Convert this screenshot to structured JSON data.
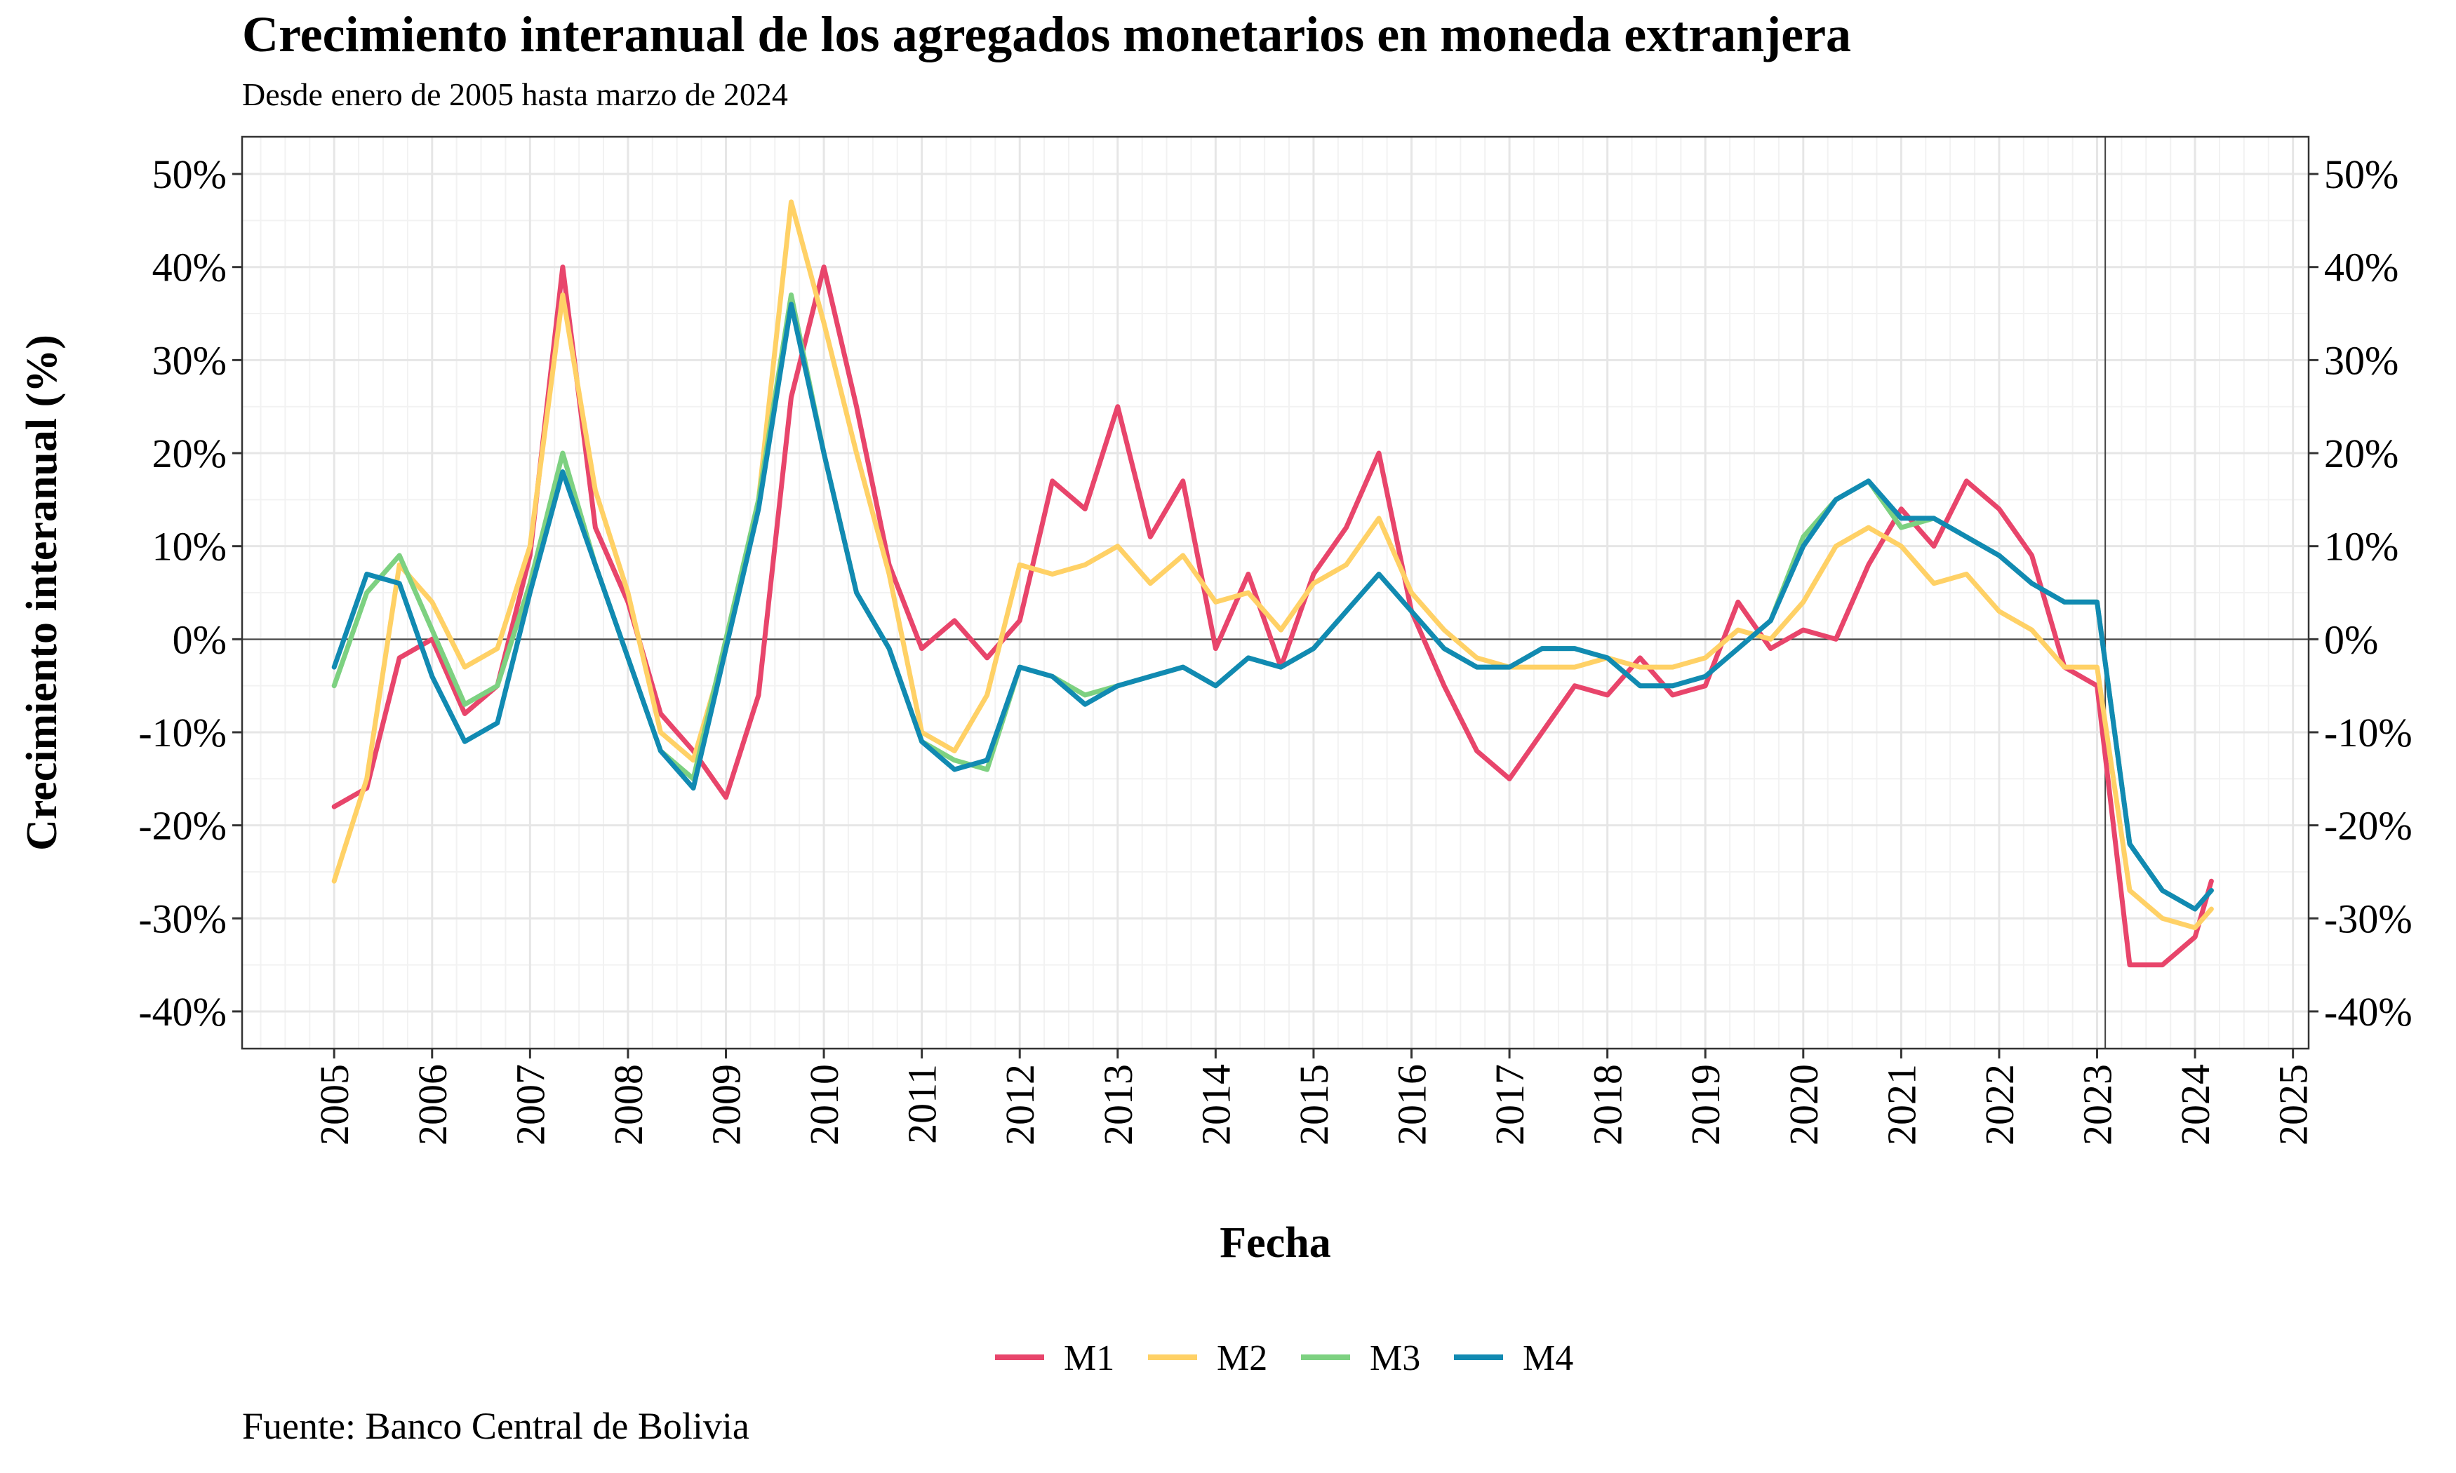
{
  "chart_data": {
    "type": "line",
    "title": "Crecimiento interanual de los agregados monetarios en moneda extranjera",
    "subtitle": "Desde enero de 2005 hasta marzo de 2024",
    "caption": "Fuente: Banco Central de Bolivia",
    "xlabel": "Fecha",
    "ylabel": "Crecimiento interanual (%)",
    "ylim": [
      -44,
      54
    ],
    "xlim": [
      2004.06,
      2025.16
    ],
    "y_ticks": [
      -40,
      -30,
      -20,
      -10,
      0,
      10,
      20,
      30,
      40,
      50
    ],
    "y_tick_labels": [
      "-40%",
      "-30%",
      "-20%",
      "-10%",
      "0%",
      "10%",
      "20%",
      "30%",
      "40%",
      "50%"
    ],
    "x_tick_labels": [
      "2005",
      "2006",
      "2007",
      "2008",
      "2009",
      "2010",
      "2011",
      "2012",
      "2013",
      "2014",
      "2015",
      "2016",
      "2017",
      "2018",
      "2019",
      "2020",
      "2021",
      "2022",
      "2023",
      "2024",
      "2025"
    ],
    "reference_hline": 0,
    "reference_vline": "2023-02",
    "grid": true,
    "legend_position": "bottom",
    "series": [
      {
        "name": "M1",
        "color": "#E8456B",
        "x": [
          "2005-01",
          "2005-05",
          "2005-09",
          "2006-01",
          "2006-05",
          "2006-09",
          "2007-01",
          "2007-05",
          "2007-09",
          "2008-01",
          "2008-05",
          "2008-09",
          "2009-01",
          "2009-05",
          "2009-09",
          "2010-01",
          "2010-05",
          "2010-09",
          "2011-01",
          "2011-05",
          "2011-09",
          "2012-01",
          "2012-05",
          "2012-09",
          "2013-01",
          "2013-05",
          "2013-09",
          "2014-01",
          "2014-05",
          "2014-09",
          "2015-01",
          "2015-05",
          "2015-09",
          "2016-01",
          "2016-05",
          "2016-09",
          "2017-01",
          "2017-05",
          "2017-09",
          "2018-01",
          "2018-05",
          "2018-09",
          "2019-01",
          "2019-05",
          "2019-09",
          "2020-01",
          "2020-05",
          "2020-09",
          "2021-01",
          "2021-05",
          "2021-09",
          "2022-01",
          "2022-05",
          "2022-09",
          "2023-01",
          "2023-05",
          "2023-09",
          "2024-01",
          "2024-03"
        ],
        "values": [
          -18,
          -16,
          -2,
          0,
          -8,
          -5,
          9,
          40,
          12,
          4,
          -8,
          -12,
          -17,
          -6,
          26,
          40,
          25,
          8,
          -1,
          2,
          -2,
          2,
          17,
          14,
          25,
          11,
          17,
          -1,
          7,
          -3,
          7,
          12,
          20,
          3,
          -5,
          -12,
          -15,
          -10,
          -5,
          -6,
          -2,
          -6,
          -5,
          4,
          -1,
          1,
          0,
          8,
          14,
          10,
          17,
          14,
          9,
          -3,
          -5,
          -35,
          -35,
          -32,
          -26
        ]
      },
      {
        "name": "M2",
        "color": "#FFD166",
        "x": [
          "2005-01",
          "2005-05",
          "2005-09",
          "2006-01",
          "2006-05",
          "2006-09",
          "2007-01",
          "2007-05",
          "2007-09",
          "2008-01",
          "2008-05",
          "2008-09",
          "2009-01",
          "2009-05",
          "2009-09",
          "2010-01",
          "2010-05",
          "2010-09",
          "2011-01",
          "2011-05",
          "2011-09",
          "2012-01",
          "2012-05",
          "2012-09",
          "2013-01",
          "2013-05",
          "2013-09",
          "2014-01",
          "2014-05",
          "2014-09",
          "2015-01",
          "2015-05",
          "2015-09",
          "2016-01",
          "2016-05",
          "2016-09",
          "2017-01",
          "2017-05",
          "2017-09",
          "2018-01",
          "2018-05",
          "2018-09",
          "2019-01",
          "2019-05",
          "2019-09",
          "2020-01",
          "2020-05",
          "2020-09",
          "2021-01",
          "2021-05",
          "2021-09",
          "2022-01",
          "2022-05",
          "2022-09",
          "2023-01",
          "2023-05",
          "2023-09",
          "2024-01",
          "2024-03"
        ],
        "values": [
          -26,
          -15,
          8,
          4,
          -3,
          -1,
          10,
          37,
          16,
          5,
          -10,
          -13,
          -1,
          15,
          47,
          34,
          20,
          7,
          -10,
          -12,
          -6,
          8,
          7,
          8,
          10,
          6,
          9,
          4,
          5,
          1,
          6,
          8,
          13,
          5,
          1,
          -2,
          -3,
          -3,
          -3,
          -2,
          -3,
          -3,
          -2,
          1,
          0,
          4,
          10,
          12,
          10,
          6,
          7,
          3,
          1,
          -3,
          -3,
          -27,
          -30,
          -31,
          -29
        ]
      },
      {
        "name": "M3",
        "color": "#7DD181",
        "x": [
          "2005-01",
          "2005-05",
          "2005-09",
          "2006-01",
          "2006-05",
          "2006-09",
          "2007-01",
          "2007-05",
          "2007-09",
          "2008-01",
          "2008-05",
          "2008-09",
          "2009-01",
          "2009-05",
          "2009-09",
          "2010-01",
          "2010-05",
          "2010-09",
          "2011-01",
          "2011-05",
          "2011-09",
          "2012-01",
          "2012-05",
          "2012-09",
          "2013-01",
          "2013-05",
          "2013-09",
          "2014-01",
          "2014-05",
          "2014-09",
          "2015-01",
          "2015-05",
          "2015-09",
          "2016-01",
          "2016-05",
          "2016-09",
          "2017-01",
          "2017-05",
          "2017-09",
          "2018-01",
          "2018-05",
          "2018-09",
          "2019-01",
          "2019-05",
          "2019-09",
          "2020-01",
          "2020-05",
          "2020-09",
          "2021-01",
          "2021-05",
          "2021-09",
          "2022-01",
          "2022-05",
          "2022-09",
          "2023-01",
          "2023-05",
          "2023-09",
          "2024-01",
          "2024-03"
        ],
        "values": [
          -5,
          5,
          9,
          1,
          -7,
          -5,
          6,
          20,
          8,
          -2,
          -12,
          -15,
          0,
          15,
          37,
          20,
          5,
          -1,
          -11,
          -13,
          -14,
          -3,
          -4,
          -6,
          -5,
          -4,
          -3,
          -5,
          -2,
          -3,
          -1,
          3,
          7,
          3,
          -1,
          -3,
          -3,
          -1,
          -1,
          -2,
          -5,
          -5,
          -4,
          -1,
          2,
          11,
          15,
          17,
          12,
          13,
          11,
          9,
          6,
          4,
          4,
          -22,
          -27,
          -29,
          -27
        ]
      },
      {
        "name": "M4",
        "color": "#118AB2",
        "x": [
          "2005-01",
          "2005-05",
          "2005-09",
          "2006-01",
          "2006-05",
          "2006-09",
          "2007-01",
          "2007-05",
          "2007-09",
          "2008-01",
          "2008-05",
          "2008-09",
          "2009-01",
          "2009-05",
          "2009-09",
          "2010-01",
          "2010-05",
          "2010-09",
          "2011-01",
          "2011-05",
          "2011-09",
          "2012-01",
          "2012-05",
          "2012-09",
          "2013-01",
          "2013-05",
          "2013-09",
          "2014-01",
          "2014-05",
          "2014-09",
          "2015-01",
          "2015-05",
          "2015-09",
          "2016-01",
          "2016-05",
          "2016-09",
          "2017-01",
          "2017-05",
          "2017-09",
          "2018-01",
          "2018-05",
          "2018-09",
          "2019-01",
          "2019-05",
          "2019-09",
          "2020-01",
          "2020-05",
          "2020-09",
          "2021-01",
          "2021-05",
          "2021-09",
          "2022-01",
          "2022-05",
          "2022-09",
          "2023-01",
          "2023-05",
          "2023-09",
          "2024-01",
          "2024-03"
        ],
        "values": [
          -3,
          7,
          6,
          -4,
          -11,
          -9,
          5,
          18,
          8,
          -2,
          -12,
          -16,
          -1,
          14,
          36,
          20,
          5,
          -1,
          -11,
          -14,
          -13,
          -3,
          -4,
          -7,
          -5,
          -4,
          -3,
          -5,
          -2,
          -3,
          -1,
          3,
          7,
          3,
          -1,
          -3,
          -3,
          -1,
          -1,
          -2,
          -5,
          -5,
          -4,
          -1,
          2,
          10,
          15,
          17,
          13,
          13,
          11,
          9,
          6,
          4,
          4,
          -22,
          -27,
          -29,
          -27
        ]
      }
    ]
  }
}
